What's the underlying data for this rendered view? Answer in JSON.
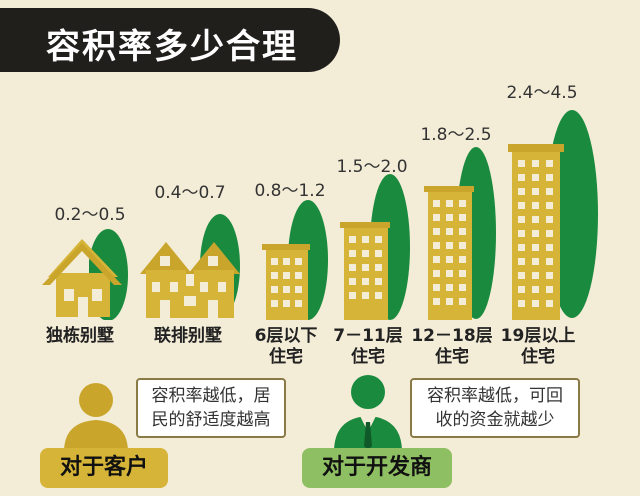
{
  "title": "容积率多少合理",
  "categories": [
    {
      "range": "0.2～0.5",
      "label_lines": [
        "独栋别墅",
        ""
      ],
      "icon": "villa-icon"
    },
    {
      "range": "0.4～0.7",
      "label_lines": [
        "联排别墅",
        ""
      ],
      "icon": "townhouse-icon"
    },
    {
      "range": "0.8～1.2",
      "label_lines": [
        "6层以下",
        "住宅"
      ],
      "icon": "low-rise-building-icon"
    },
    {
      "range": "1.5～2.0",
      "label_lines": [
        "7－11层",
        "住宅"
      ],
      "icon": "mid-rise-building-icon"
    },
    {
      "range": "1.8～2.5",
      "label_lines": [
        "12－18层",
        "住宅"
      ],
      "icon": "high-rise-building-icon"
    },
    {
      "range": "2.4～4.5",
      "label_lines": [
        "19层以上",
        "住宅"
      ],
      "icon": "tower-building-icon"
    }
  ],
  "client": {
    "label": "对于客户",
    "bubble_lines": [
      "容积率越低，居",
      "民的舒适度越高"
    ]
  },
  "developer": {
    "label": "对于开发商",
    "bubble_lines": [
      "容积率越低，可回",
      "收的资金就越少"
    ]
  },
  "colors": {
    "gold": "#d6b437",
    "green": "#1a8a3e",
    "dark": "#201f1c",
    "background": "#f3ecd7"
  }
}
